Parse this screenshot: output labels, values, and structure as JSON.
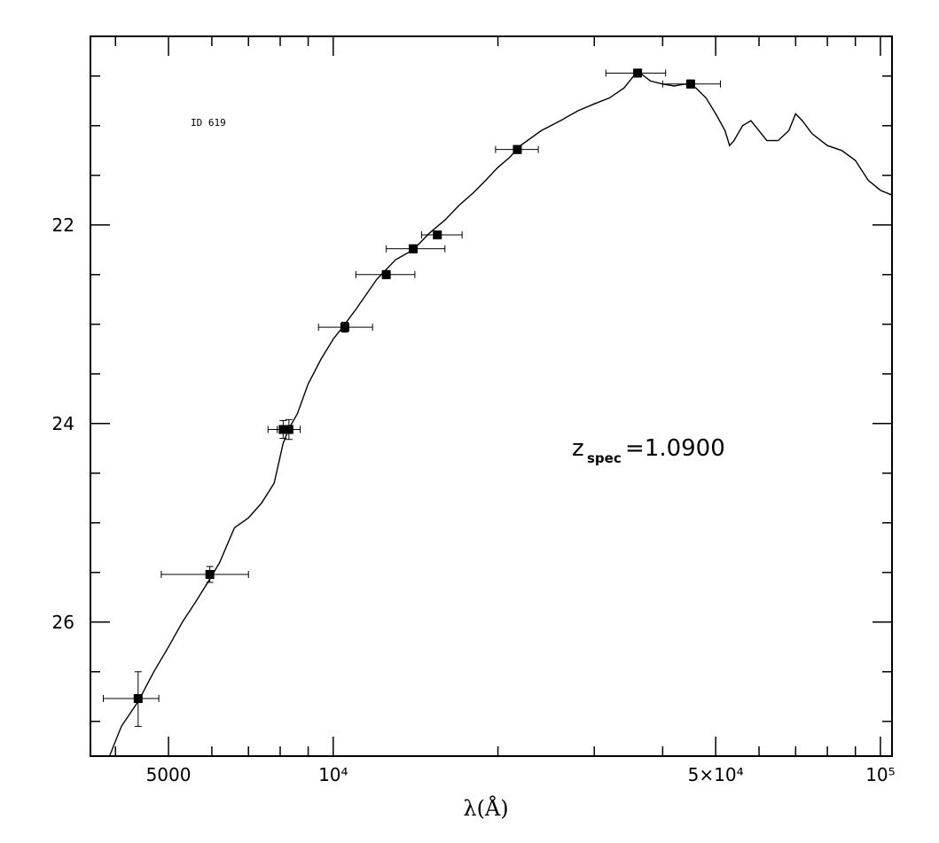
{
  "chart_data": {
    "type": "scatter",
    "title": "",
    "xlabel": "λ(Å)",
    "ylabel": "",
    "x_scale": "log",
    "y_inverted": true,
    "xlim": [
      3600,
      105000
    ],
    "ylim": [
      27.35,
      20.1
    ],
    "x_ticks": [
      {
        "value": 5000,
        "label": "5000"
      },
      {
        "value": 10000,
        "label": "10⁴"
      },
      {
        "value": 50000,
        "label": "5×10⁴"
      },
      {
        "value": 100000,
        "label": "10⁵"
      }
    ],
    "y_ticks": [
      {
        "value": 22,
        "label": "22"
      },
      {
        "value": 24,
        "label": "24"
      },
      {
        "value": 26,
        "label": "26"
      }
    ],
    "grid": false,
    "annotations": {
      "id_text": "ID 619",
      "z_main": "z",
      "z_sub": "spec",
      "z_value": "=1.0900"
    },
    "photometry": [
      {
        "x": 4400,
        "y": 26.77,
        "x_err": [
          3800,
          4800
        ],
        "y_err": [
          26.5,
          27.05
        ]
      },
      {
        "x": 5950,
        "y": 25.52,
        "x_err": [
          4850,
          7000
        ],
        "y_err": [
          25.44,
          25.6
        ]
      },
      {
        "x": 8100,
        "y": 24.06,
        "x_err": [
          7600,
          8700
        ],
        "y_err": [
          23.97,
          24.15
        ]
      },
      {
        "x": 8300,
        "y": 24.06,
        "x_err": [
          7900,
          8700
        ],
        "y_err": [
          23.96,
          24.16
        ]
      },
      {
        "x": 10500,
        "y": 23.03,
        "x_err": [
          9400,
          11800
        ],
        "y_err": [
          22.98,
          23.08
        ]
      },
      {
        "x": 12500,
        "y": 22.5,
        "x_err": [
          11000,
          14100
        ],
        "y_err": [
          22.46,
          22.54
        ]
      },
      {
        "x": 14000,
        "y": 22.24,
        "x_err": [
          12500,
          16000
        ],
        "y_err": [
          22.2,
          22.28
        ]
      },
      {
        "x": 15500,
        "y": 22.1,
        "x_err": [
          14500,
          17200
        ],
        "y_err": [
          22.06,
          22.14
        ]
      },
      {
        "x": 21700,
        "y": 21.24,
        "x_err": [
          19800,
          23700
        ],
        "y_err": [
          21.2,
          21.28
        ]
      },
      {
        "x": 36000,
        "y": 20.47,
        "x_err": [
          31500,
          40500
        ],
        "y_err": [
          20.43,
          20.51
        ]
      },
      {
        "x": 45000,
        "y": 20.58,
        "x_err": [
          40000,
          51000
        ],
        "y_err": [
          20.54,
          20.62
        ]
      }
    ],
    "series": [
      {
        "type": "line",
        "x": [
          3900,
          4100,
          4400,
          4700,
          5000,
          5300,
          5600,
          5900,
          6200,
          6600,
          7000,
          7400,
          7800,
          8100,
          8300,
          8600,
          9000,
          9500,
          10000,
          10500,
          11000,
          12000,
          13000,
          14000,
          15000,
          16000,
          17000,
          18000,
          19000,
          20000,
          21000,
          22000,
          24000,
          26000,
          28000,
          30000,
          32000,
          34000,
          36000,
          38000,
          40000,
          42000,
          44000,
          46000,
          48000,
          50000,
          52000,
          53000,
          54000,
          56000,
          58000,
          60000,
          62000,
          65000,
          68000,
          70000,
          72000,
          75000,
          80000,
          85000,
          90000,
          95000,
          100000,
          105000
        ],
        "y": [
          27.35,
          27.05,
          26.8,
          26.5,
          26.25,
          26.0,
          25.8,
          25.6,
          25.4,
          25.05,
          24.95,
          24.8,
          24.6,
          24.2,
          24.05,
          23.9,
          23.6,
          23.35,
          23.15,
          23.0,
          22.85,
          22.55,
          22.35,
          22.25,
          22.08,
          21.95,
          21.8,
          21.68,
          21.55,
          21.42,
          21.32,
          21.2,
          21.05,
          20.95,
          20.85,
          20.78,
          20.72,
          20.62,
          20.45,
          20.55,
          20.58,
          20.6,
          20.58,
          20.62,
          20.72,
          20.88,
          21.05,
          21.2,
          21.15,
          21.0,
          20.95,
          21.05,
          21.15,
          21.15,
          21.05,
          20.88,
          20.95,
          21.08,
          21.2,
          21.25,
          21.35,
          21.55,
          21.65,
          21.7
        ]
      }
    ]
  }
}
